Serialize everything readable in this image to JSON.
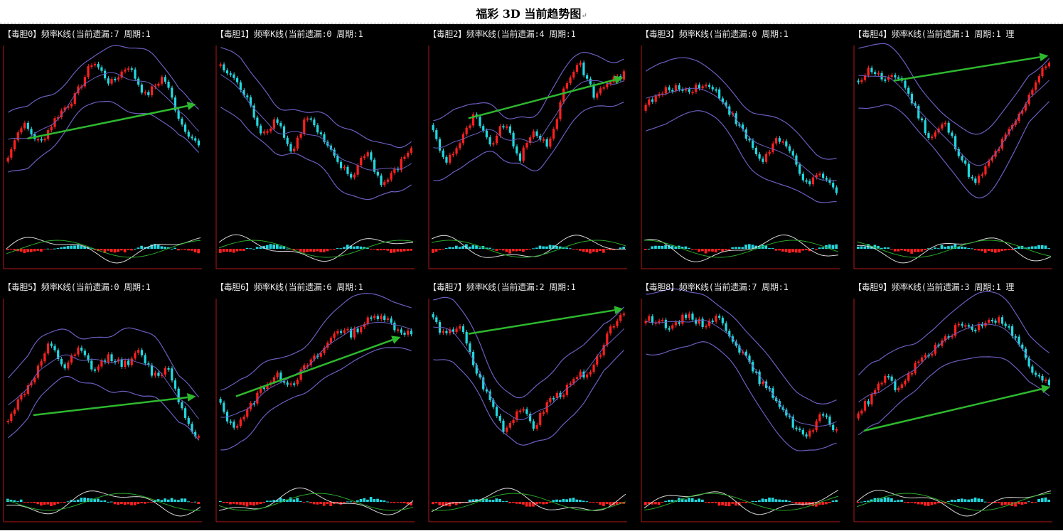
{
  "title": "福彩 3D 当前趋势图",
  "return_mark": "↵",
  "colors": {
    "background": "#000000",
    "rise_candle": "#ff2020",
    "fall_candle": "#22d8e0",
    "band_line": "#6a5fc0",
    "trend_arrow": "#2eb82e",
    "frame": "#b01818",
    "macd_dif": "#d8d8d8",
    "macd_dea": "#2aa82a"
  },
  "panels": [
    {
      "caption": "【毒胆0】频率K线(当前遗漏:7 周期:1"
    },
    {
      "caption": "【毒胆1】频率K线(当前遗漏:0 周期:1"
    },
    {
      "caption": "【毒胆2】频率K线(当前遗漏:4 周期:1"
    },
    {
      "caption": "【毒胆3】频率K线(当前遗漏:0 周期:1"
    },
    {
      "caption": "【毒胆4】频率K线(当前遗漏:1 周期:1 理"
    },
    {
      "caption": "【毒胆5】频率K线(当前遗漏:0 周期:1"
    },
    {
      "caption": "【毒胆6】频率K线(当前遗漏:6 周期:1"
    },
    {
      "caption": "【毒胆7】频率K线(当前遗漏:2 周期:1"
    },
    {
      "caption": "【毒胆8】频率K线(当前遗漏:7 周期:1"
    },
    {
      "caption": "【毒胆9】频率K线(当前遗漏:3 周期:1 理"
    }
  ],
  "chart_data": {
    "type": "candlestick",
    "panels": [
      {
        "name": "毒胆0",
        "miss": 7,
        "period": 1,
        "trend": "up",
        "price_path": [
          0.3,
          0.55,
          0.42,
          0.6,
          0.72,
          0.95,
          0.8,
          0.92,
          0.72,
          0.85,
          0.55,
          0.4
        ],
        "arrow": [
          0.12,
          0.45,
          0.97,
          0.67
        ]
      },
      {
        "name": "毒胆1",
        "miss": 0,
        "period": 1,
        "trend": "down",
        "price_path": [
          0.92,
          0.85,
          0.7,
          0.48,
          0.58,
          0.35,
          0.6,
          0.45,
          0.3,
          0.2,
          0.38,
          0.15,
          0.25,
          0.4
        ],
        "arrow": null
      },
      {
        "name": "毒胆2",
        "miss": 4,
        "period": 1,
        "trend": "up",
        "price_path": [
          0.55,
          0.3,
          0.42,
          0.6,
          0.4,
          0.55,
          0.32,
          0.5,
          0.4,
          0.78,
          0.95,
          0.72,
          0.82,
          0.86
        ],
        "arrow": [
          0.2,
          0.58,
          0.98,
          0.84
        ]
      },
      {
        "name": "毒胆3",
        "miss": 0,
        "period": 1,
        "trend": "down",
        "price_path": [
          0.65,
          0.72,
          0.78,
          0.76,
          0.8,
          0.75,
          0.6,
          0.45,
          0.3,
          0.45,
          0.35,
          0.15,
          0.22,
          0.1
        ],
        "arrow": null
      },
      {
        "name": "毒胆4",
        "miss": 1,
        "period": 1,
        "trend": "up",
        "price_path": [
          0.8,
          0.9,
          0.82,
          0.85,
          0.65,
          0.45,
          0.55,
          0.35,
          0.15,
          0.3,
          0.45,
          0.6,
          0.8,
          0.95
        ],
        "arrow": [
          0.2,
          0.82,
          0.98,
          0.98
        ]
      },
      {
        "name": "毒胆5",
        "miss": 0,
        "period": 1,
        "trend": "up",
        "price_path": [
          0.25,
          0.4,
          0.55,
          0.75,
          0.6,
          0.72,
          0.58,
          0.68,
          0.62,
          0.7,
          0.55,
          0.6,
          0.3,
          0.15
        ],
        "arrow": [
          0.15,
          0.3,
          0.97,
          0.42
        ]
      },
      {
        "name": "毒胆6",
        "miss": 6,
        "period": 1,
        "trend": "up",
        "price_path": [
          0.4,
          0.22,
          0.32,
          0.48,
          0.55,
          0.5,
          0.62,
          0.7,
          0.85,
          0.82,
          0.9,
          0.95,
          0.85,
          0.82
        ],
        "arrow": [
          0.1,
          0.42,
          0.93,
          0.8
        ]
      },
      {
        "name": "毒胆7",
        "miss": 2,
        "period": 1,
        "trend": "up",
        "price_path": [
          0.95,
          0.8,
          0.88,
          0.6,
          0.4,
          0.2,
          0.35,
          0.22,
          0.4,
          0.45,
          0.55,
          0.6,
          0.85,
          0.97
        ],
        "arrow": [
          0.2,
          0.82,
          0.98,
          0.98
        ]
      },
      {
        "name": "毒胆8",
        "miss": 7,
        "period": 1,
        "trend": "down",
        "price_path": [
          0.9,
          0.92,
          0.85,
          0.95,
          0.88,
          0.93,
          0.8,
          0.65,
          0.5,
          0.4,
          0.25,
          0.15,
          0.3,
          0.2
        ],
        "arrow": null
      },
      {
        "name": "毒胆9",
        "miss": 3,
        "period": 1,
        "trend": "up",
        "price_path": [
          0.3,
          0.4,
          0.55,
          0.45,
          0.62,
          0.7,
          0.78,
          0.88,
          0.85,
          0.92,
          0.9,
          0.75,
          0.55,
          0.5
        ],
        "arrow": [
          0.05,
          0.2,
          0.99,
          0.48
        ]
      }
    ]
  }
}
